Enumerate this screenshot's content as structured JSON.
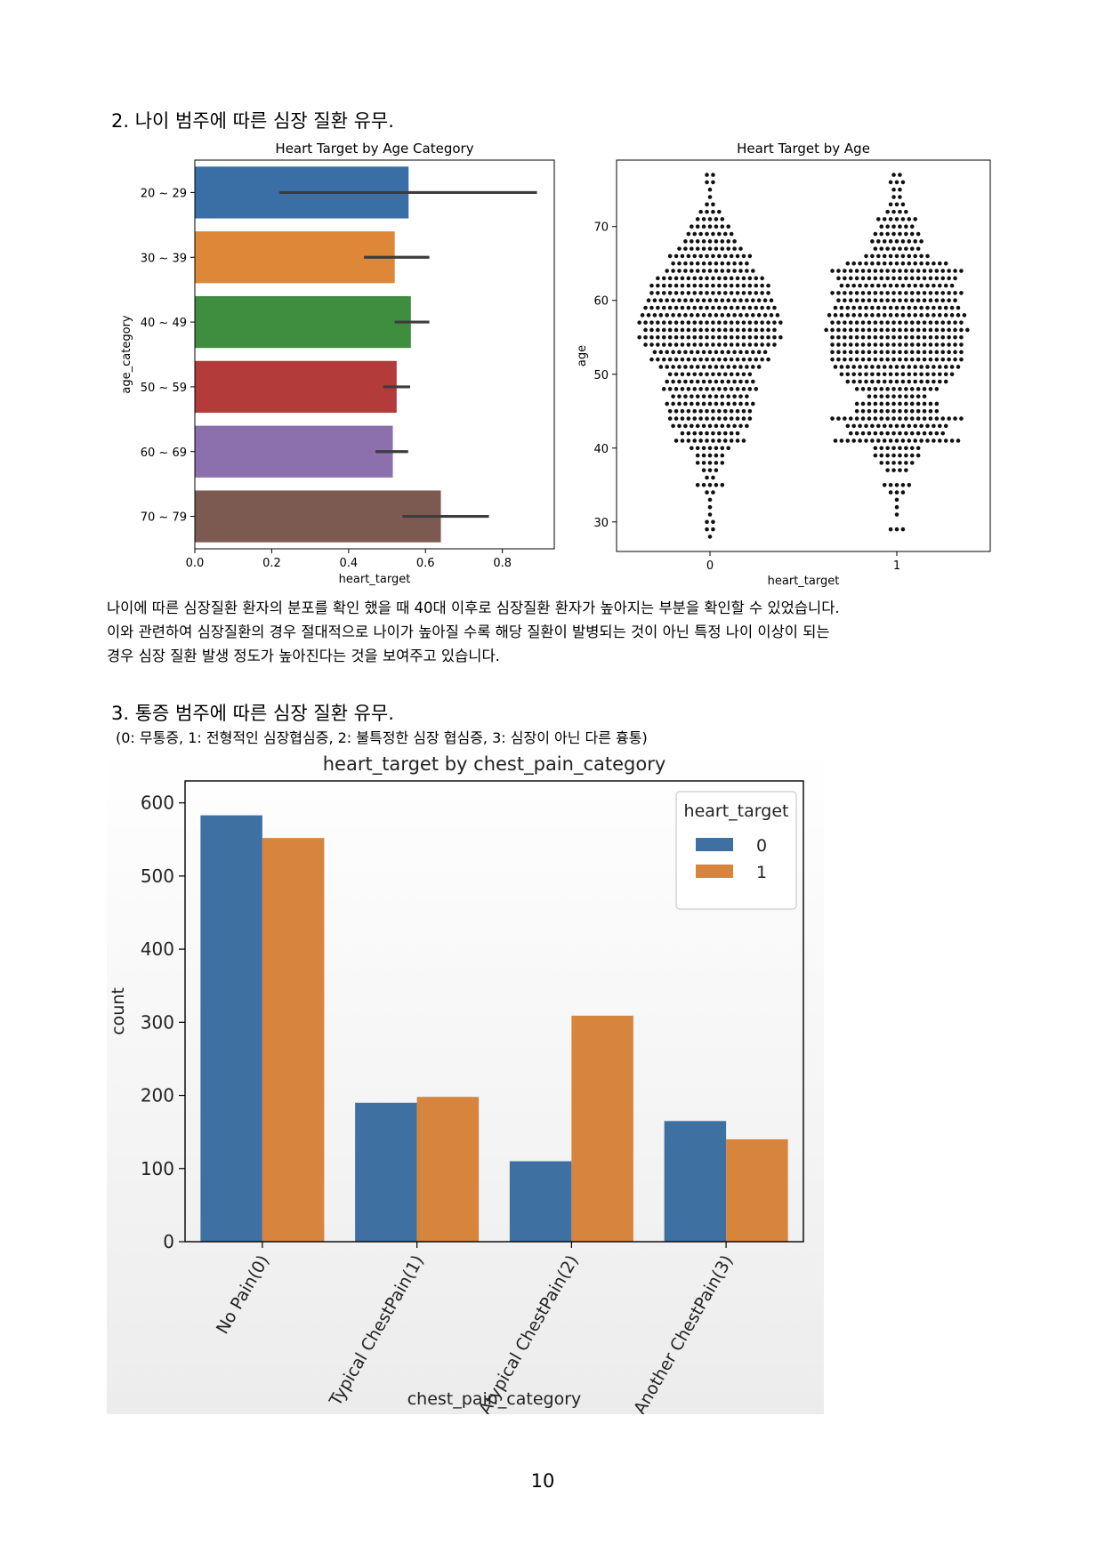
{
  "section2": {
    "heading": "2. 나이 범주에 따른 심장 질환 유무.",
    "paragraph_lines": [
      "나이에  따른 심장질환 환자의 분포를 확인 했을 때 40대 이후로 심장질환 환자가 높아지는 부분을 확인할 수 있었습니다.",
      "이와 관련하여 심장질환의 경우 절대적으로 나이가 높아질 수록 해당 질환이 발병되는 것이 아닌 특정 나이 이상이 되는",
      "경우 심장 질환 발생 정도가 높아진다는 것을 보여주고 있습니다."
    ]
  },
  "section3": {
    "heading": "3. 통증 범주에  따른 심장 질환 유무.",
    "note": "(0: 무통증, 1: 전형적인 심장협심증, 2: 불특정한 심장 협심증, 3: 심장이 아닌 다른 흉통)"
  },
  "page_number": "10",
  "chart_data": [
    {
      "type": "bar",
      "orientation": "horizontal",
      "title": "Heart Target by Age Category",
      "xlabel": "heart_target",
      "ylabel": "age_category",
      "categories": [
        "20 ~ 29",
        "30 ~ 39",
        "40 ~ 49",
        "50 ~ 59",
        "60 ~ 69",
        "70 ~ 79"
      ],
      "values": [
        0.556,
        0.52,
        0.562,
        0.525,
        0.515,
        0.64
      ],
      "error_bars": [
        [
          0.22,
          0.89
        ],
        [
          0.44,
          0.61
        ],
        [
          0.52,
          0.61
        ],
        [
          0.49,
          0.56
        ],
        [
          0.47,
          0.555
        ],
        [
          0.54,
          0.765
        ]
      ],
      "colors": [
        "#3a6fa5",
        "#df8738",
        "#3f8e3f",
        "#b33c3a",
        "#8c70ae",
        "#7d5a51"
      ],
      "xticks": [
        "0.0",
        "0.2",
        "0.4",
        "0.6",
        "0.8"
      ],
      "xlim": [
        0,
        0.935
      ]
    },
    {
      "type": "scatter",
      "subtype": "swarm",
      "title": "Heart Target by Age",
      "xlabel": "heart_target",
      "ylabel": "age",
      "categories": [
        "0",
        "1"
      ],
      "yticks": [
        "30",
        "40",
        "50",
        "60",
        "70"
      ],
      "ylim": [
        26,
        79
      ],
      "series": [
        {
          "category": "0",
          "age_counts": [
            [
              28,
              1
            ],
            [
              29,
              2
            ],
            [
              30,
              2
            ],
            [
              31,
              1
            ],
            [
              32,
              1
            ],
            [
              33,
              1
            ],
            [
              34,
              2
            ],
            [
              35,
              5
            ],
            [
              36,
              2
            ],
            [
              37,
              3
            ],
            [
              38,
              5
            ],
            [
              39,
              5
            ],
            [
              40,
              7
            ],
            [
              41,
              12
            ],
            [
              42,
              10
            ],
            [
              43,
              13
            ],
            [
              44,
              14
            ],
            [
              45,
              14
            ],
            [
              46,
              15
            ],
            [
              47,
              13
            ],
            [
              48,
              16
            ],
            [
              49,
              15
            ],
            [
              50,
              14
            ],
            [
              51,
              17
            ],
            [
              52,
              20
            ],
            [
              53,
              19
            ],
            [
              54,
              22
            ],
            [
              55,
              24
            ],
            [
              56,
              22
            ],
            [
              57,
              24
            ],
            [
              58,
              23
            ],
            [
              59,
              22
            ],
            [
              60,
              21
            ],
            [
              61,
              20
            ],
            [
              62,
              20
            ],
            [
              63,
              18
            ],
            [
              64,
              15
            ],
            [
              65,
              13
            ],
            [
              66,
              14
            ],
            [
              67,
              11
            ],
            [
              68,
              9
            ],
            [
              69,
              8
            ],
            [
              70,
              7
            ],
            [
              71,
              5
            ],
            [
              72,
              4
            ],
            [
              73,
              2
            ],
            [
              74,
              1
            ],
            [
              75,
              1
            ],
            [
              76,
              2
            ],
            [
              77,
              2
            ]
          ]
        },
        {
          "category": "1",
          "age_counts": [
            [
              29,
              3
            ],
            [
              31,
              1
            ],
            [
              32,
              1
            ],
            [
              33,
              1
            ],
            [
              34,
              3
            ],
            [
              35,
              5
            ],
            [
              37,
              4
            ],
            [
              38,
              6
            ],
            [
              39,
              8
            ],
            [
              40,
              8
            ],
            [
              41,
              21
            ],
            [
              42,
              16
            ],
            [
              43,
              17
            ],
            [
              44,
              22
            ],
            [
              45,
              14
            ],
            [
              46,
              14
            ],
            [
              47,
              10
            ],
            [
              48,
              14
            ],
            [
              49,
              17
            ],
            [
              50,
              19
            ],
            [
              51,
              21
            ],
            [
              52,
              22
            ],
            [
              53,
              22
            ],
            [
              54,
              22
            ],
            [
              55,
              22
            ],
            [
              56,
              24
            ],
            [
              57,
              22
            ],
            [
              58,
              23
            ],
            [
              59,
              21
            ],
            [
              60,
              20
            ],
            [
              61,
              22
            ],
            [
              62,
              19
            ],
            [
              63,
              20
            ],
            [
              64,
              22
            ],
            [
              65,
              17
            ],
            [
              66,
              11
            ],
            [
              67,
              8
            ],
            [
              68,
              9
            ],
            [
              69,
              8
            ],
            [
              70,
              6
            ],
            [
              71,
              7
            ],
            [
              72,
              4
            ],
            [
              73,
              3
            ],
            [
              74,
              2
            ],
            [
              75,
              2
            ],
            [
              76,
              3
            ],
            [
              77,
              2
            ]
          ]
        }
      ]
    },
    {
      "type": "bar",
      "title": "heart_target by chest_pain_category",
      "xlabel": "chest_pain_category",
      "ylabel": "count",
      "categories": [
        "No Pain(0)",
        "Typical ChestPain(1)",
        "Atypical ChestPain(2)",
        "Another ChestPain(3)"
      ],
      "legend_title": "heart_target",
      "legend_placement": "top-right",
      "series": [
        {
          "name": "0",
          "values": [
            583,
            190,
            110,
            165
          ],
          "color": "#3e70a1"
        },
        {
          "name": "1",
          "values": [
            552,
            198,
            309,
            140
          ],
          "color": "#d7843d"
        }
      ],
      "yticks": [
        "0",
        "100",
        "200",
        "300",
        "400",
        "500",
        "600"
      ],
      "ylim": [
        0,
        630
      ]
    }
  ]
}
